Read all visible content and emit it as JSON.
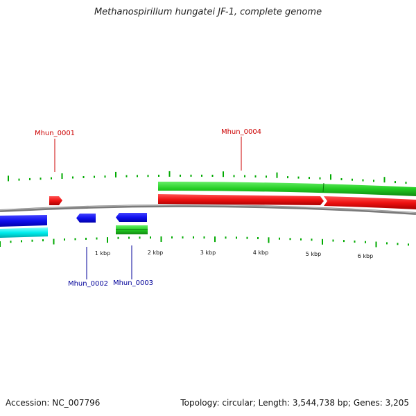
{
  "title": "Methanospirillum hungatei JF-1, complete genome",
  "footer": {
    "accession": "Accession: NC_007796",
    "topology": "Topology: circular; Length: 3,544,738 bp; Genes: 3,205"
  },
  "colors": {
    "tick": "#00aa00",
    "backbone": "#808080",
    "forward_gene": "#ee1111",
    "reverse_gene": "#1010ee",
    "forward_cds": "#22cc22",
    "reverse_cds": "#00eeee",
    "forward_label": "#cc0000",
    "reverse_label": "#000099"
  },
  "scale_labels": [
    "1 kbp",
    "2 kbp",
    "3 kbp",
    "4 kbp",
    "5 kbp",
    "6 kbp"
  ],
  "genes": [
    {
      "id": "Mhun_0001",
      "strand": "forward"
    },
    {
      "id": "Mhun_0002",
      "strand": "reverse"
    },
    {
      "id": "Mhun_0003",
      "strand": "reverse"
    },
    {
      "id": "Mhun_0004",
      "strand": "forward"
    }
  ]
}
